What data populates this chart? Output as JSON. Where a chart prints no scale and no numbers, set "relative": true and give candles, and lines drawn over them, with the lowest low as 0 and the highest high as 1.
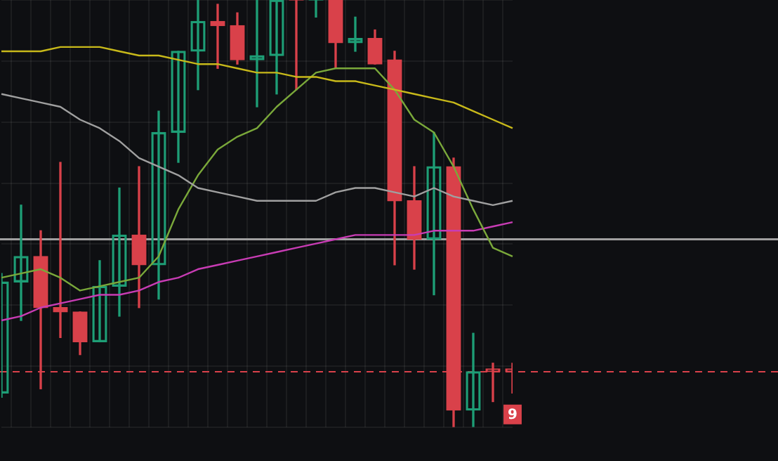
{
  "chart_data": {
    "type": "candlestick",
    "relative": true,
    "grid": true,
    "categories": [
      null,
      null,
      null,
      null,
      null,
      null,
      null,
      null,
      null,
      null,
      null,
      null,
      null,
      null,
      null,
      null,
      null,
      null,
      null,
      null,
      null,
      null,
      null,
      null,
      null,
      null,
      null
    ],
    "ohlc": [
      [
        0.08,
        0.36,
        0.07,
        0.34
      ],
      [
        0.34,
        0.52,
        0.25,
        0.4
      ],
      [
        0.4,
        0.46,
        0.09,
        0.28
      ],
      [
        0.28,
        0.62,
        0.21,
        0.27
      ],
      [
        0.27,
        0.27,
        0.17,
        0.2
      ],
      [
        0.2,
        0.39,
        0.2,
        0.33
      ],
      [
        0.33,
        0.56,
        0.26,
        0.45
      ],
      [
        0.45,
        0.61,
        0.28,
        0.38
      ],
      [
        0.38,
        0.74,
        0.3,
        0.69
      ],
      [
        0.69,
        0.88,
        0.62,
        0.88
      ],
      [
        0.88,
        1,
        0.79,
        0.95
      ],
      [
        0.95,
        0.99,
        0.84,
        0.94
      ],
      [
        0.94,
        0.97,
        0.85,
        0.86
      ],
      [
        0.86,
        1,
        0.75,
        0.87
      ],
      [
        0.87,
        1,
        0.78,
        1
      ],
      [
        1,
        1,
        0.79,
        1
      ],
      [
        1,
        1,
        0.96,
        1
      ],
      [
        1,
        1,
        0.84,
        0.9
      ],
      [
        0.9,
        0.96,
        0.88,
        0.91
      ],
      [
        0.91,
        0.93,
        0.85,
        0.85
      ],
      [
        0.86,
        0.88,
        0.38,
        0.53
      ],
      [
        0.53,
        0.61,
        0.37,
        0.44
      ],
      [
        0.44,
        0.69,
        0.31,
        0.61
      ],
      [
        0.61,
        0.63,
        0,
        0.04
      ],
      [
        0.04,
        0.22,
        0,
        0.13
      ],
      [
        0.13,
        0.15,
        0.06,
        0.13
      ],
      [
        0.13,
        0.15,
        0.08,
        0.13
      ]
    ],
    "colors": [
      "#1e9e76",
      "#1e9e76",
      "#d9414a",
      "#d9414a",
      "#d9414a",
      "#1e9e76",
      "#1e9e76",
      "#d9414a",
      "#1e9e76",
      "#1e9e76",
      "#1e9e76",
      "#d9414a",
      "#d9414a",
      "#1e9e76",
      "#1e9e76",
      "#d9414a",
      "#1e9e76",
      "#d9414a",
      "#1e9e76",
      "#d9414a",
      "#d9414a",
      "#d9414a",
      "#1e9e76",
      "#d9414a",
      "#1e9e76",
      "#d9414a",
      "#d9414a"
    ],
    "series": [
      {
        "type": "line",
        "color": "#c8b91a",
        "values": [
          0.88,
          0.88,
          0.88,
          0.89,
          0.89,
          0.89,
          0.88,
          0.87,
          0.87,
          0.86,
          0.85,
          0.85,
          0.84,
          0.83,
          0.83,
          0.82,
          0.82,
          0.81,
          0.81,
          0.8,
          0.79,
          0.78,
          0.77,
          0.76,
          0.74,
          0.72,
          0.7
        ]
      },
      {
        "type": "line",
        "color": "#a0a0a0",
        "values": [
          0.78,
          0.77,
          0.76,
          0.75,
          0.72,
          0.7,
          0.67,
          0.63,
          0.61,
          0.59,
          0.56,
          0.55,
          0.54,
          0.53,
          0.53,
          0.53,
          0.53,
          0.55,
          0.56,
          0.56,
          0.55,
          0.54,
          0.56,
          0.54,
          0.53,
          0.52,
          0.53
        ]
      },
      {
        "type": "line",
        "color": "#7aa83a",
        "values": [
          0.35,
          0.36,
          0.37,
          0.35,
          0.32,
          0.33,
          0.34,
          0.35,
          0.4,
          0.51,
          0.59,
          0.65,
          0.68,
          0.7,
          0.75,
          0.79,
          0.83,
          0.84,
          0.84,
          0.84,
          0.79,
          0.72,
          0.69,
          0.61,
          0.51,
          0.42,
          0.4
        ]
      },
      {
        "type": "line",
        "color": "#c83cb4",
        "values": [
          0.25,
          0.26,
          0.28,
          0.29,
          0.3,
          0.31,
          0.31,
          0.32,
          0.34,
          0.35,
          0.37,
          0.38,
          0.39,
          0.4,
          0.41,
          0.42,
          0.43,
          0.44,
          0.45,
          0.45,
          0.45,
          0.45,
          0.46,
          0.46,
          0.46,
          0.47,
          0.48
        ]
      }
    ],
    "ref_lines": [
      {
        "axis": "y",
        "value": 0.44,
        "color": "#a0a0a0",
        "line_style": "solid"
      },
      {
        "axis": "y",
        "value": 0.13,
        "color": "#d9414a",
        "line_style": "dashed"
      }
    ],
    "annotations": [
      {
        "text": "9",
        "y": 0.03
      }
    ]
  }
}
